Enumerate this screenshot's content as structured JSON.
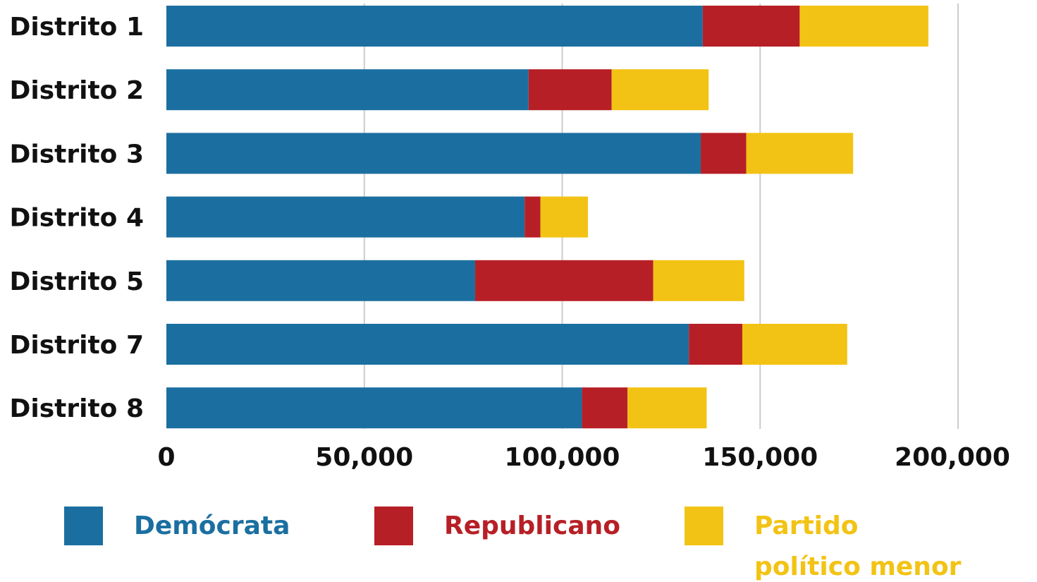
{
  "colors": {
    "democrat": "#1b6fa0",
    "republican": "#b71f26",
    "minor": "#f2c314",
    "grid": "#cccccc",
    "text": "#111111"
  },
  "chart_data": {
    "type": "bar",
    "orientation": "horizontal",
    "stacked": true,
    "categories": [
      "Distrito 1",
      "Distrito 2",
      "Distrito 3",
      "Distrito 4",
      "Distrito 5",
      "Distrito 7",
      "Distrito 8"
    ],
    "series": [
      {
        "name": "Demócrata",
        "color": "#1b6fa0",
        "values": [
          135500,
          91500,
          135000,
          90500,
          78000,
          132000,
          105000
        ]
      },
      {
        "name": "Republicano",
        "color": "#b71f26",
        "values": [
          24500,
          21000,
          11500,
          4000,
          45000,
          13500,
          11500
        ]
      },
      {
        "name": "Partido político menor",
        "color": "#f2c314",
        "values": [
          32500,
          24500,
          27000,
          12000,
          23000,
          26500,
          20000
        ]
      }
    ],
    "xlim": [
      0,
      200000
    ],
    "xticks": [
      "0",
      "50,000",
      "100,000",
      "150,000",
      "200,000"
    ],
    "xtick_values": [
      0,
      50000,
      100000,
      150000,
      200000
    ],
    "grid": true,
    "legend": {
      "position": "bottom",
      "items": [
        {
          "label": "Demócrata",
          "color": "#1b6fa0"
        },
        {
          "label": "Republicano",
          "color": "#b71f26"
        },
        {
          "label_line1": "Partido",
          "label_line2": "político menor",
          "color": "#f2c314"
        }
      ]
    }
  }
}
